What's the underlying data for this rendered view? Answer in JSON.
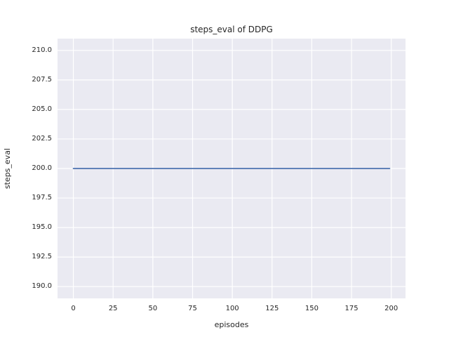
{
  "figure": {
    "background": "#ffffff"
  },
  "chart_data": {
    "type": "line",
    "title": "steps_eval of DDPG",
    "xlabel": "episodes",
    "ylabel": "steps_eval",
    "x_tick_values": [
      0,
      25,
      50,
      75,
      100,
      125,
      150,
      175,
      200
    ],
    "x_tick_labels": [
      "0",
      "25",
      "50",
      "75",
      "100",
      "125",
      "150",
      "175",
      "200"
    ],
    "y_tick_values": [
      190,
      192.5,
      195,
      197.5,
      200,
      202.5,
      205,
      207.5,
      210
    ],
    "y_tick_labels": [
      "190.0",
      "192.5",
      "195.0",
      "197.5",
      "200.0",
      "202.5",
      "205.0",
      "207.5",
      "210.0"
    ],
    "xlim": [
      -9.95,
      208.95
    ],
    "ylim": [
      189,
      211
    ],
    "grid": true,
    "legend_position": "none",
    "style": {
      "axes_background": "#eaeaf2",
      "grid_color": "#ffffff",
      "text_color": "#262626"
    },
    "series": [
      {
        "name": "steps_eval",
        "color": "#4c72b0",
        "line_width": 1.8,
        "x": [
          0,
          199
        ],
        "y": [
          200,
          200
        ]
      }
    ]
  }
}
